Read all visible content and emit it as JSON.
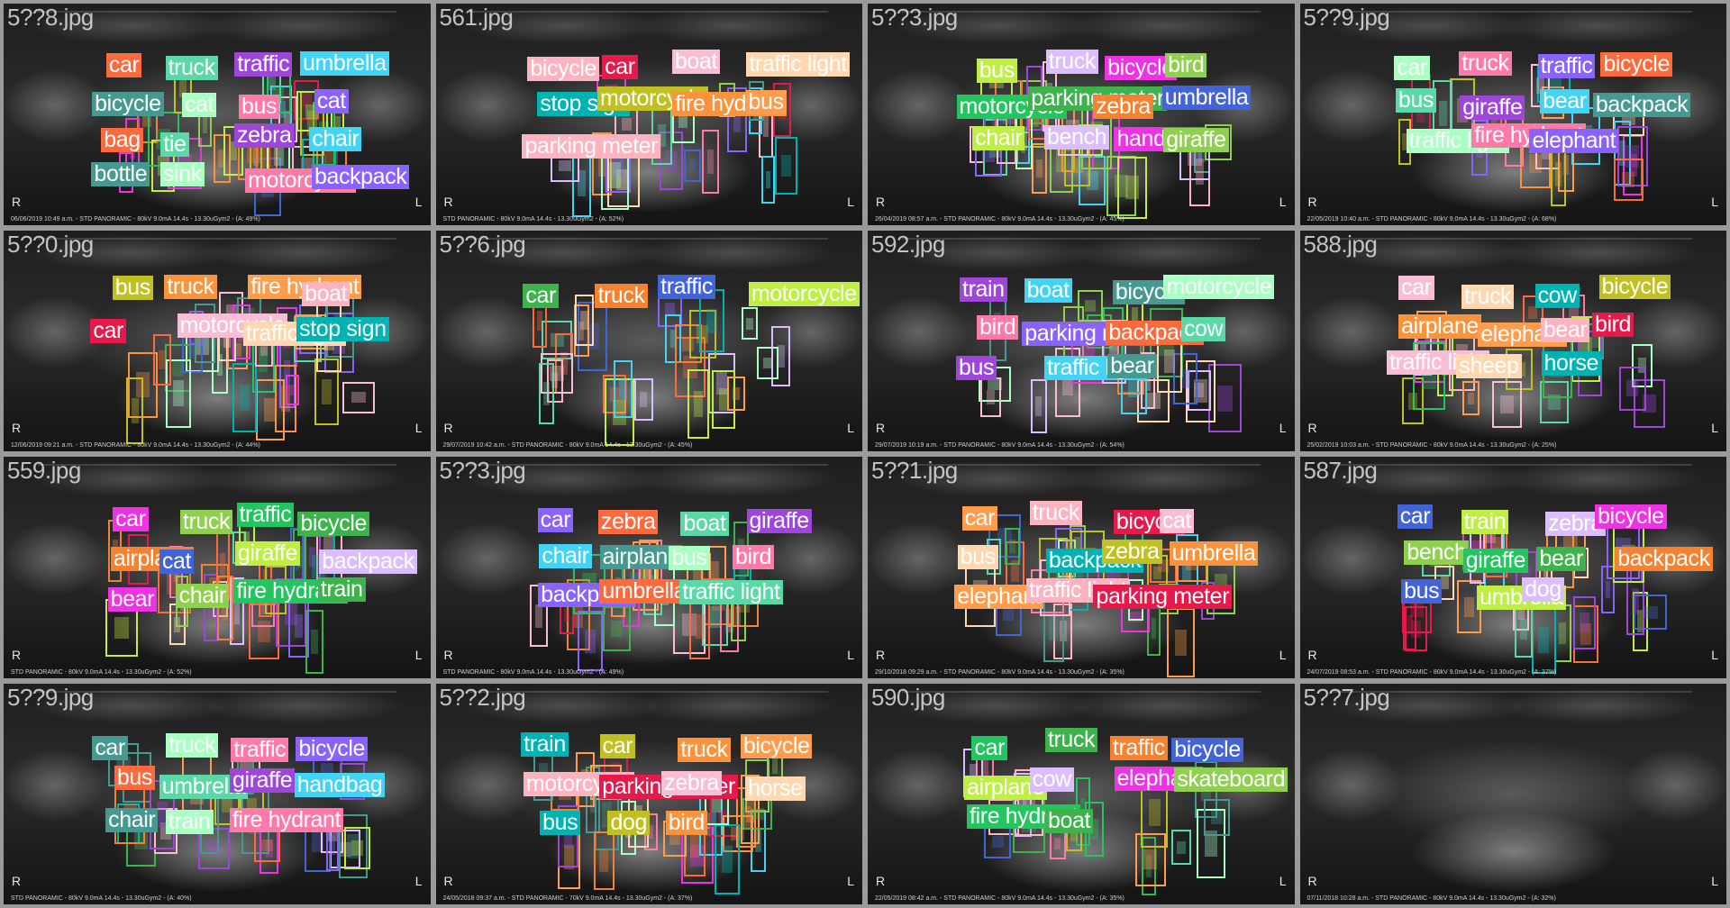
{
  "tiles": [
    {
      "file": "5??8.jpg",
      "footer": "06/06/2019 10:49 a.m. - STD PANORAMIC - 80kV 9.0mA 14.4s - 13.30uGym2 - (A: 49%)",
      "labels": [
        "car",
        "truck",
        "traffic",
        "umbrella",
        "bicycle",
        "cat",
        "bus",
        "cat",
        "bag",
        "tie",
        "zebra",
        "chair",
        "bottle",
        "sink",
        "motorcycle",
        "backpack"
      ]
    },
    {
      "file": "561.jpg",
      "footer": "STD PANORAMIC - 80kV 9.0mA 14.4s - 13.30uGym2 - (A: 52%)",
      "labels": [
        "bicycle",
        "car",
        "boat",
        "traffic light",
        "stop sign",
        "motorcycle",
        "fire hydrant",
        "bus",
        "parking meter"
      ]
    },
    {
      "file": "5??3.jpg",
      "footer": "26/04/2019 08:57 a.m. - STD PANORAMIC - 80kV 9.0mA 14.4s - 13.30uGym2 - (A: 45%)",
      "labels": [
        "bus",
        "truck",
        "bicycle",
        "bird",
        "motorcycle",
        "parking meter",
        "zebra",
        "umbrella",
        "chair",
        "bench",
        "handbag",
        "giraffe"
      ]
    },
    {
      "file": "5??9.jpg",
      "footer": "22/05/2019 10:40 a.m. - STD PANORAMIC - 80kV 9.0mA 14.4s - 13.30uGym2 - (A: 68%)",
      "labels": [
        "car",
        "truck",
        "traffic",
        "bicycle",
        "bus",
        "giraffe",
        "bear",
        "backpack",
        "traffic light",
        "fire hydrant",
        "elephant"
      ]
    },
    {
      "file": "5??0.jpg",
      "footer": "12/06/2019 09:21 a.m. - STD PANORAMIC - 80kV 9.0mA 14.4s - 13.30uGym2 - (A: 44%)",
      "labels": [
        "bus",
        "truck",
        "fire hydrant",
        "boat",
        "car",
        "motorcycle",
        "traffic light",
        "stop sign"
      ]
    },
    {
      "file": "5??6.jpg",
      "footer": "29/07/2019 10:42 a.m. - STD PANORAMIC - 80kV 9.0mA 14.4s - 13.30uGym2 - (A: 45%)",
      "labels": [
        "car",
        "truck",
        "traffic",
        "motorcycle"
      ]
    },
    {
      "file": "592.jpg",
      "footer": "29/07/2019 10:19 a.m. - STD PANORAMIC - 80kV 9.0mA 14.4s - 13.30uGym2 - (A: 54%)",
      "labels": [
        "train",
        "boat",
        "bicycle",
        "motorcycle",
        "bird",
        "parking meter",
        "backpack",
        "cow",
        "bus",
        "traffic light",
        "bear"
      ]
    },
    {
      "file": "588.jpg",
      "footer": "25/02/2019 10:03 a.m. - STD PANORAMIC - 80kV 9.0mA 14.4s - 13.30uGym2 - (A: 25%)",
      "labels": [
        "car",
        "truck",
        "cow",
        "bicycle",
        "airplane",
        "elephant",
        "bear",
        "bird",
        "traffic light",
        "sheep",
        "horse"
      ]
    },
    {
      "file": "559.jpg",
      "footer": "STD PANORAMIC - 80kV 9.0mA 14.4s - 13.30uGym2 - (A: 52%)",
      "labels": [
        "car",
        "truck",
        "traffic",
        "bicycle",
        "airplane",
        "cat",
        "giraffe",
        "backpack",
        "bear",
        "chair",
        "fire hydrant",
        "train"
      ]
    },
    {
      "file": "5??3.jpg",
      "footer": "STD PANORAMIC - 80kV 9.0mA 14.4s - 13.30uGym2 - (A: 49%)",
      "labels": [
        "car",
        "zebra",
        "boat",
        "giraffe",
        "chair",
        "airplane",
        "bus",
        "bird",
        "backpack",
        "umbrella",
        "traffic light"
      ]
    },
    {
      "file": "5??1.jpg",
      "footer": "29/10/2018 09:29 a.m. - STD PANORAMIC - 80kV 9.0mA 14.4s - 13.30uGym2 - (A: 35%)",
      "labels": [
        "car",
        "truck",
        "bicycle",
        "cat",
        "bus",
        "backpack",
        "zebra",
        "umbrella",
        "elephant",
        "traffic light",
        "parking meter"
      ]
    },
    {
      "file": "587.jpg",
      "footer": "24/07/2019 08:53 a.m. - STD PANORAMIC - 80kV 9.0mA 14.4s - 13.30uGym2 - (A: 37%)",
      "labels": [
        "car",
        "train",
        "zebra",
        "bicycle",
        "bench",
        "giraffe",
        "bear",
        "backpack",
        "bus",
        "umbrella",
        "dog"
      ]
    },
    {
      "file": "5??9.jpg",
      "footer": "STD PANORAMIC - 80kV 9.0mA 14.4s - 13.30uGym2 - (A: 40%)",
      "labels": [
        "car",
        "truck",
        "traffic",
        "bicycle",
        "bus",
        "umbrella",
        "giraffe",
        "handbag",
        "chair",
        "train",
        "fire hydrant"
      ]
    },
    {
      "file": "5??2.jpg",
      "footer": "24/05/2018 09:37 a.m. - STD PANORAMIC - 70kV 9.0mA 14.4s - 13.30uGym2 - (A: 37%)",
      "labels": [
        "train",
        "car",
        "truck",
        "bicycle",
        "motorcycle",
        "parking meter",
        "zebra",
        "horse",
        "bus",
        "dog",
        "bird"
      ]
    },
    {
      "file": "590.jpg",
      "footer": "22/05/2019 08:42 a.m. - STD PANORAMIC - 80kV 9.0mA 14.4s - 13.30uGym2 - (A: 35%)",
      "labels": [
        "car",
        "truck",
        "traffic",
        "bicycle",
        "airplane",
        "cow",
        "elephant",
        "skateboard",
        "fire hydrant",
        "boat"
      ]
    },
    {
      "file": "5??7.jpg",
      "footer": "07/11/2018 10:28 a.m. - STD PANORAMIC - 80kV 9.0mA 14.4s - 13.30uGym2 - (A: 32%)",
      "labels": []
    }
  ],
  "side_left_mark": "R",
  "side_right_mark": "L",
  "palette": [
    "#ff6a3d",
    "#3cb44b",
    "#ff9d4d",
    "#5ad8a6",
    "#f58231",
    "#ffb3c1",
    "#9d46d9",
    "#4363d8",
    "#e6194b",
    "#42d4f4",
    "#bfef45",
    "#fabed4",
    "#469990",
    "#dcbeff",
    "#ffd8b1",
    "#aaffc3",
    "#f032e6",
    "#00b3b3",
    "#ff7aa8",
    "#8fd14f",
    "#c0c020",
    "#8a63ff",
    "#22c55e",
    "#fb923c"
  ]
}
